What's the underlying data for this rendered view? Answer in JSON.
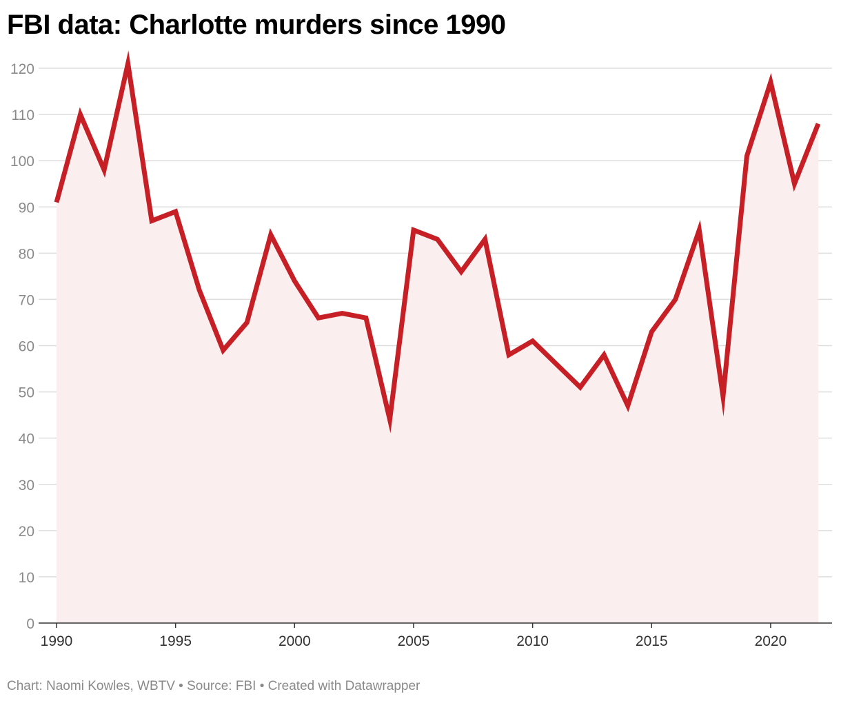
{
  "title": "FBI data: Charlotte murders since 1990",
  "footer": "Chart: Naomi Kowles, WBTV • Source: FBI • Created with Datawrapper",
  "colors": {
    "line": "#c62026",
    "area": "#fbeeee",
    "grid": "#dedede",
    "baseline": "#333333"
  },
  "chart_data": {
    "type": "area",
    "title": "FBI data: Charlotte murders since 1990",
    "xlabel": "",
    "ylabel": "",
    "x": [
      1990,
      1991,
      1992,
      1993,
      1994,
      1995,
      1996,
      1997,
      1998,
      1999,
      2000,
      2001,
      2002,
      2003,
      2004,
      2005,
      2006,
      2007,
      2008,
      2009,
      2010,
      2011,
      2012,
      2013,
      2014,
      2015,
      2016,
      2017,
      2018,
      2019,
      2020,
      2021,
      2022
    ],
    "series": [
      {
        "values": [
          91,
          110,
          98,
          121,
          87,
          89,
          72,
          59,
          65,
          84,
          74,
          66,
          67,
          66,
          44,
          85,
          83,
          76,
          83,
          58,
          61,
          56,
          51,
          58,
          47,
          63,
          70,
          85,
          49,
          101,
          117,
          95,
          108
        ]
      }
    ],
    "xlim": [
      1990,
      2022
    ],
    "ylim": [
      0,
      120
    ],
    "x_ticks": [
      "1990",
      "1995",
      "2000",
      "2005",
      "2010",
      "2015",
      "2020"
    ],
    "y_ticks": [
      "0",
      "10",
      "20",
      "30",
      "40",
      "50",
      "60",
      "70",
      "80",
      "90",
      "100",
      "110",
      "120"
    ],
    "grid": true,
    "legend": "none"
  }
}
